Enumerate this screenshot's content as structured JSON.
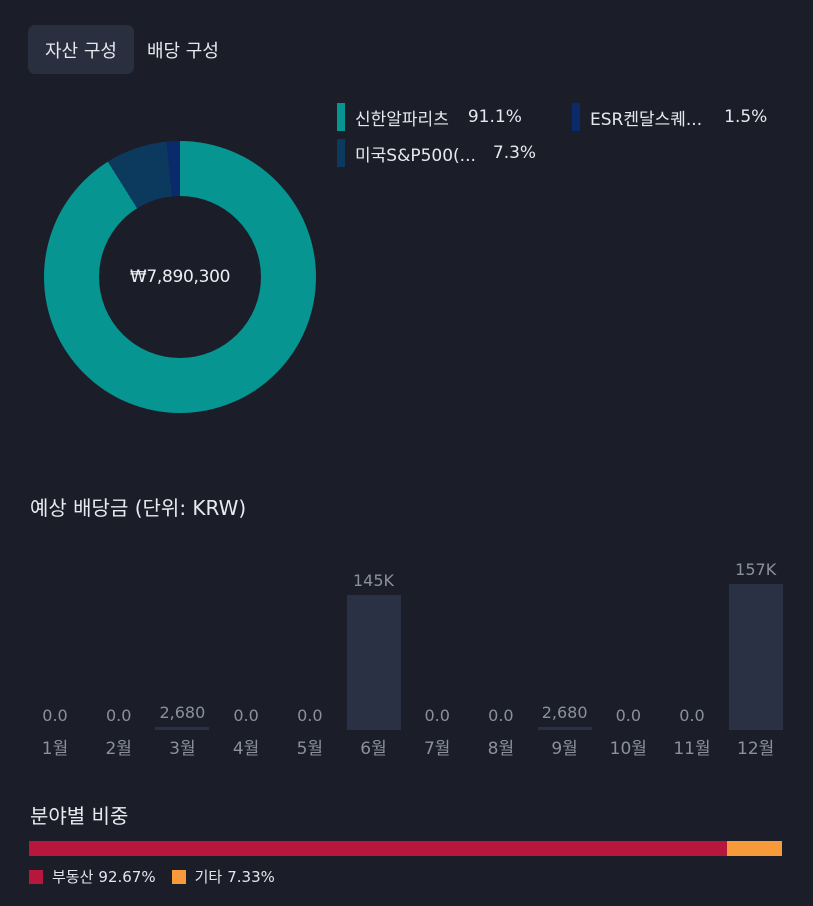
{
  "tabs": [
    {
      "label": "자산 구성",
      "active": true
    },
    {
      "label": "배당 구성",
      "active": false
    }
  ],
  "portfolio": {
    "total": "₩7,890,300",
    "holdings": [
      {
        "name": "신한알파리츠",
        "pct_label": "91.1%",
        "pct": 91.1,
        "color": "#069590"
      },
      {
        "name": "ESR켄달스퀘...",
        "pct_label": "1.5%",
        "pct": 1.5,
        "color": "#0b2a6b"
      },
      {
        "name": "미국S&P500(...",
        "pct_label": "7.3%",
        "pct": 7.3,
        "color": "#0c3a5f"
      }
    ]
  },
  "dividends": {
    "title": "예상 배당금 (단위: KRW)",
    "bar_color": "#2b3145",
    "chart_data": {
      "type": "bar",
      "categories": [
        "1월",
        "2월",
        "3월",
        "4월",
        "5월",
        "6월",
        "7월",
        "8월",
        "9월",
        "10월",
        "11월",
        "12월"
      ],
      "values": [
        0,
        0,
        2680,
        0,
        0,
        145000,
        0,
        0,
        2680,
        0,
        0,
        157000
      ],
      "value_labels": [
        "0.0",
        "0.0",
        "2,680",
        "0.0",
        "0.0",
        "145K",
        "0.0",
        "0.0",
        "2,680",
        "0.0",
        "0.0",
        "157K"
      ]
    }
  },
  "sectors": {
    "title": "분야별 비중",
    "items": [
      {
        "name": "부동산",
        "pct_label": "92.67%",
        "pct": 92.67,
        "color": "#b8173d"
      },
      {
        "name": "기타",
        "pct_label": "7.33%",
        "pct": 7.33,
        "color": "#f79a3a"
      }
    ]
  }
}
